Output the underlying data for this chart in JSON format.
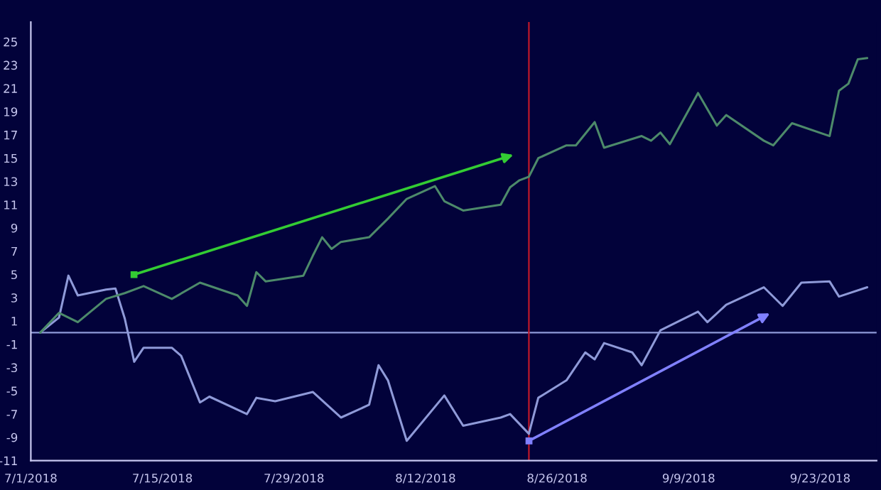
{
  "chart_data": {
    "type": "line",
    "series": [
      {
        "color": "#8f9ad8",
        "x": [
          "2018-07-02",
          "2018-07-04",
          "2018-07-05",
          "2018-07-06",
          "2018-07-09",
          "2018-07-10",
          "2018-07-11",
          "2018-07-12",
          "2018-07-13",
          "2018-07-16",
          "2018-07-17",
          "2018-07-19",
          "2018-07-20",
          "2018-07-24",
          "2018-07-25",
          "2018-07-27",
          "2018-07-31",
          "2018-08-03",
          "2018-08-06",
          "2018-08-07",
          "2018-08-08",
          "2018-08-10",
          "2018-08-14",
          "2018-08-16",
          "2018-08-20",
          "2018-08-21",
          "2018-08-23",
          "2018-08-24",
          "2018-08-27",
          "2018-08-29",
          "2018-08-30",
          "2018-08-31",
          "2018-09-03",
          "2018-09-04",
          "2018-09-06",
          "2018-09-10",
          "2018-09-11",
          "2018-09-13",
          "2018-09-17",
          "2018-09-19",
          "2018-09-21",
          "2018-09-24",
          "2018-09-25",
          "2018-09-28"
        ],
        "values": [
          0,
          1.3,
          4.9,
          3.2,
          3.7,
          3.8,
          1.2,
          -2.5,
          -1.3,
          -1.3,
          -2.0,
          -6.0,
          -5.5,
          -7.0,
          -5.6,
          -5.9,
          -5.1,
          -7.3,
          -6.2,
          -2.8,
          -4.1,
          -9.3,
          -5.4,
          -8.0,
          -7.3,
          -7.0,
          -8.7,
          -5.6,
          -4.1,
          -1.7,
          -2.3,
          -0.9,
          -1.7,
          -2.8,
          0.2,
          1.8,
          0.9,
          2.4,
          3.9,
          2.3,
          4.3,
          4.4,
          3.1,
          3.9
        ]
      },
      {
        "color": "#4d8a6a",
        "x": [
          "2018-07-02",
          "2018-07-04",
          "2018-07-06",
          "2018-07-09",
          "2018-07-11",
          "2018-07-13",
          "2018-07-16",
          "2018-07-19",
          "2018-07-23",
          "2018-07-24",
          "2018-07-25",
          "2018-07-26",
          "2018-07-30",
          "2018-07-31",
          "2018-08-01",
          "2018-08-02",
          "2018-08-03",
          "2018-08-06",
          "2018-08-08",
          "2018-08-10",
          "2018-08-13",
          "2018-08-14",
          "2018-08-16",
          "2018-08-20",
          "2018-08-21",
          "2018-08-22",
          "2018-08-23",
          "2018-08-24",
          "2018-08-27",
          "2018-08-28",
          "2018-08-30",
          "2018-08-31",
          "2018-09-04",
          "2018-09-05",
          "2018-09-06",
          "2018-09-07",
          "2018-09-10",
          "2018-09-12",
          "2018-09-13",
          "2018-09-17",
          "2018-09-18",
          "2018-09-20",
          "2018-09-24",
          "2018-09-25",
          "2018-09-26",
          "2018-09-27",
          "2018-09-28"
        ],
        "values": [
          0,
          1.7,
          0.9,
          2.9,
          3.4,
          4.0,
          2.9,
          4.3,
          3.2,
          2.3,
          5.2,
          4.4,
          4.9,
          6.6,
          8.2,
          7.2,
          7.8,
          8.2,
          9.8,
          11.5,
          12.6,
          11.3,
          10.5,
          11.0,
          12.5,
          13.1,
          13.4,
          15.0,
          16.1,
          16.1,
          18.1,
          15.9,
          16.9,
          16.5,
          17.2,
          16.2,
          20.6,
          17.8,
          18.7,
          16.5,
          16.1,
          18.0,
          16.9,
          20.8,
          21.4,
          23.5,
          23.6
        ]
      }
    ],
    "xlim": [
      "2018-07-01",
      "2018-09-29"
    ],
    "xticks": [
      {
        "value": "2018-07-01",
        "label": "7/1/2018"
      },
      {
        "value": "2018-07-15",
        "label": "7/15/2018"
      },
      {
        "value": "2018-07-29",
        "label": "7/29/2018"
      },
      {
        "value": "2018-08-12",
        "label": "8/12/2018"
      },
      {
        "value": "2018-08-26",
        "label": "8/26/2018"
      },
      {
        "value": "2018-09-09",
        "label": "9/9/2018"
      },
      {
        "value": "2018-09-23",
        "label": "9/23/2018"
      }
    ],
    "ylim": [
      -11,
      26.7
    ],
    "yticks": [
      -11,
      -9,
      -7,
      -5,
      -3,
      -1,
      1,
      3,
      5,
      7,
      9,
      11,
      13,
      15,
      17,
      19,
      21,
      23,
      25
    ],
    "ref_lines": [
      {
        "axis": "y",
        "value": 0,
        "color": "#8f9ad8"
      },
      {
        "axis": "x",
        "value": "2018-08-23",
        "color": "#c0182a"
      }
    ],
    "grid": false,
    "marker": "none",
    "line_style": "solid"
  }
}
